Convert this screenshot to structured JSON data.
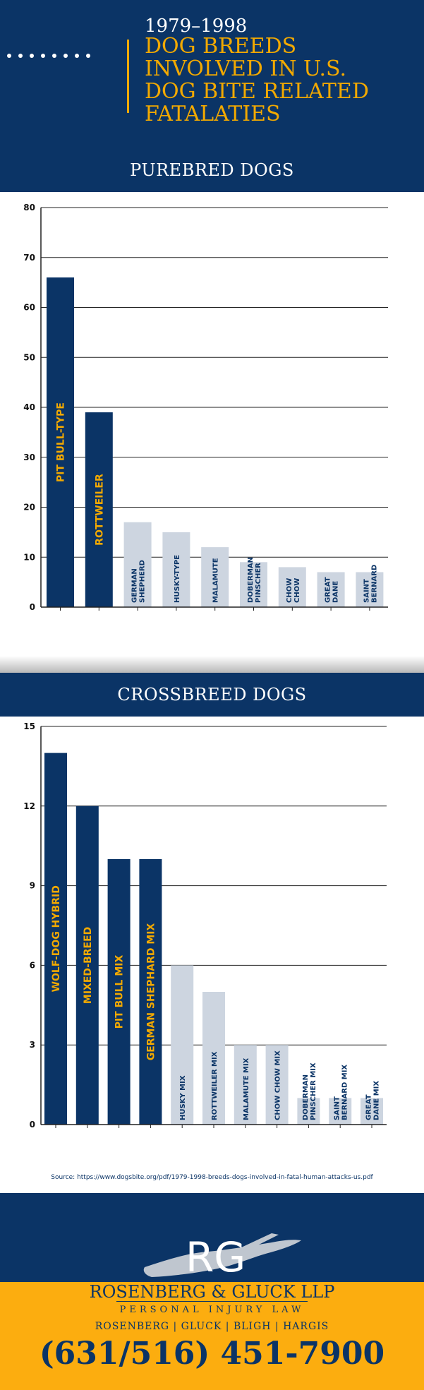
{
  "header": {
    "years": "1979–1998",
    "title_lines": [
      "DOG BREEDS",
      "INVOLVED IN U.S.",
      "DOG BITE RELATED",
      "FATALATIES"
    ]
  },
  "sections": {
    "purebred_title": "PUREBRED DOGS",
    "crossbreed_title": "CROSSBREED DOGS"
  },
  "colors": {
    "navy": "#0b3466",
    "gold": "#f2a900",
    "light_bar": "#cdd5e0",
    "footer_gold": "#fcad0f"
  },
  "chart_data": [
    {
      "type": "bar",
      "title": "PUREBRED DOGS",
      "ylim": [
        0,
        80
      ],
      "yticks": [
        0,
        10,
        20,
        30,
        40,
        50,
        60,
        70,
        80
      ],
      "grid": true,
      "categories": [
        [
          "PIT BULL-TYPE"
        ],
        [
          "ROTTWEILER"
        ],
        [
          "GERMAN",
          "SHEPHERD"
        ],
        [
          "HUSKY-TYPE"
        ],
        [
          "MALAMUTE"
        ],
        [
          "DOBERMAN",
          "PINSCHER"
        ],
        [
          "CHOW",
          "CHOW"
        ],
        [
          "GREAT",
          "DANE"
        ],
        [
          "SAINT",
          "BERNARD"
        ]
      ],
      "values": [
        66,
        39,
        17,
        15,
        12,
        9,
        8,
        7,
        7
      ],
      "highlight": [
        true,
        true,
        false,
        false,
        false,
        false,
        false,
        false,
        false
      ]
    },
    {
      "type": "bar",
      "title": "CROSSBREED DOGS",
      "ylim": [
        0,
        15
      ],
      "yticks": [
        0,
        3,
        6,
        9,
        12,
        15
      ],
      "grid": true,
      "categories": [
        [
          "WOLF-DOG HYBRID"
        ],
        [
          "MIXED-BREED"
        ],
        [
          "PIT BULL MIX"
        ],
        [
          "GERMAN SHEPHARD MIX"
        ],
        [
          "HUSKY MIX"
        ],
        [
          "ROTTWEILER MIX"
        ],
        [
          "MALAMUTE MIX"
        ],
        [
          "CHOW CHOW MIX"
        ],
        [
          "DOBERMAN",
          "PINSCHER MIX"
        ],
        [
          "SAINT",
          "BERNARD MIX"
        ],
        [
          "GREAT",
          "DANE MIX"
        ]
      ],
      "values": [
        14,
        12,
        10,
        10,
        6,
        5,
        3,
        3,
        1,
        1,
        1
      ],
      "highlight": [
        true,
        true,
        true,
        true,
        false,
        false,
        false,
        false,
        false,
        false,
        false
      ]
    }
  ],
  "source": "Source: https://www.dogsbite.org/pdf/1979-1998-breeds-dogs-involved-in-fatal-human-attacks-us.pdf",
  "footer": {
    "logo_letters": "RG",
    "firm_name": "ROSENBERG & GLUCK LLP",
    "tagline": "PERSONAL INJURY LAW",
    "partners": "ROSENBERG | GLUCK | BLIGH | HARGIS",
    "phone": "(631/516) 451-7900"
  }
}
